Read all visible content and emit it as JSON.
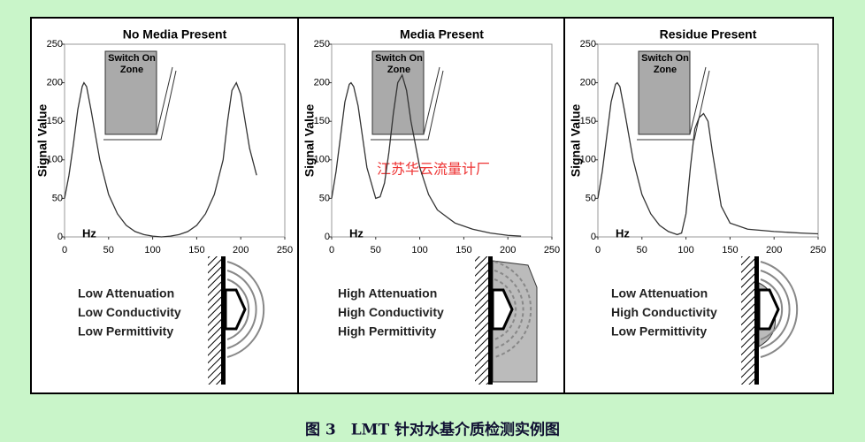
{
  "chart_data": [
    {
      "type": "line",
      "title": "No Media Present",
      "ylabel": "Signal Value",
      "xlabel": "Hz",
      "zone_label": [
        "Switch On",
        "Zone"
      ],
      "notes": [
        "Low Attenuation",
        "Low Conductivity",
        "Low Permittivity"
      ],
      "x": [
        0,
        5,
        10,
        15,
        20,
        22,
        25,
        30,
        40,
        50,
        60,
        70,
        80,
        90,
        100,
        110,
        120,
        130,
        140,
        150,
        160,
        170,
        180,
        185,
        190,
        195,
        200,
        205,
        210,
        218
      ],
      "values": [
        50,
        80,
        120,
        165,
        195,
        200,
        195,
        165,
        100,
        55,
        30,
        15,
        7,
        3,
        1,
        0,
        1,
        3,
        7,
        15,
        30,
        55,
        100,
        150,
        190,
        200,
        185,
        150,
        115,
        80
      ],
      "color": "#333333",
      "xlim": [
        0,
        250
      ],
      "ylim": [
        0,
        250
      ],
      "xticks": [
        0,
        50,
        100,
        150,
        200,
        250
      ],
      "yticks": [
        0,
        50,
        100,
        150,
        200,
        250
      ]
    },
    {
      "type": "line",
      "title": "Media Present",
      "ylabel": "Signal Value",
      "xlabel": "Hz",
      "zone_label": [
        "Switch On",
        "Zone"
      ],
      "notes": [
        "High Attenuation",
        "High Conductivity",
        "High Permittivity"
      ],
      "x": [
        0,
        5,
        10,
        15,
        20,
        22,
        25,
        30,
        40,
        50,
        55,
        60,
        65,
        70,
        75,
        80,
        85,
        90,
        100,
        110,
        120,
        140,
        160,
        180,
        200,
        215
      ],
      "values": [
        50,
        85,
        130,
        175,
        198,
        200,
        195,
        170,
        90,
        50,
        52,
        70,
        110,
        160,
        200,
        210,
        190,
        150,
        90,
        55,
        35,
        18,
        10,
        5,
        2,
        1
      ],
      "color": "#333333",
      "xlim": [
        0,
        250
      ],
      "ylim": [
        0,
        250
      ],
      "xticks": [
        0,
        50,
        100,
        150,
        200,
        250
      ],
      "yticks": [
        0,
        50,
        100,
        150,
        200,
        250
      ]
    },
    {
      "type": "line",
      "title": "Residue Present",
      "ylabel": "Signal Value",
      "xlabel": "Hz",
      "zone_label": [
        "Switch On",
        "Zone"
      ],
      "notes": [
        "Low Attenuation",
        "High Conductivity",
        "Low Permittivity"
      ],
      "x": [
        0,
        5,
        10,
        15,
        20,
        22,
        25,
        30,
        40,
        50,
        60,
        70,
        80,
        90,
        95,
        100,
        105,
        110,
        115,
        120,
        125,
        130,
        140,
        150,
        170,
        200,
        230,
        250
      ],
      "values": [
        50,
        85,
        130,
        175,
        198,
        200,
        195,
        165,
        100,
        55,
        30,
        15,
        7,
        3,
        5,
        30,
        90,
        140,
        155,
        160,
        150,
        110,
        40,
        18,
        10,
        7,
        5,
        4
      ],
      "color": "#333333",
      "xlim": [
        0,
        250
      ],
      "ylim": [
        0,
        250
      ],
      "xticks": [
        0,
        50,
        100,
        150,
        200,
        250
      ],
      "yticks": [
        0,
        50,
        100,
        150,
        200,
        250
      ]
    }
  ],
  "watermark": "江苏华云流量计厂",
  "caption": "图 3　LMT 针对水基介质检测实例图"
}
